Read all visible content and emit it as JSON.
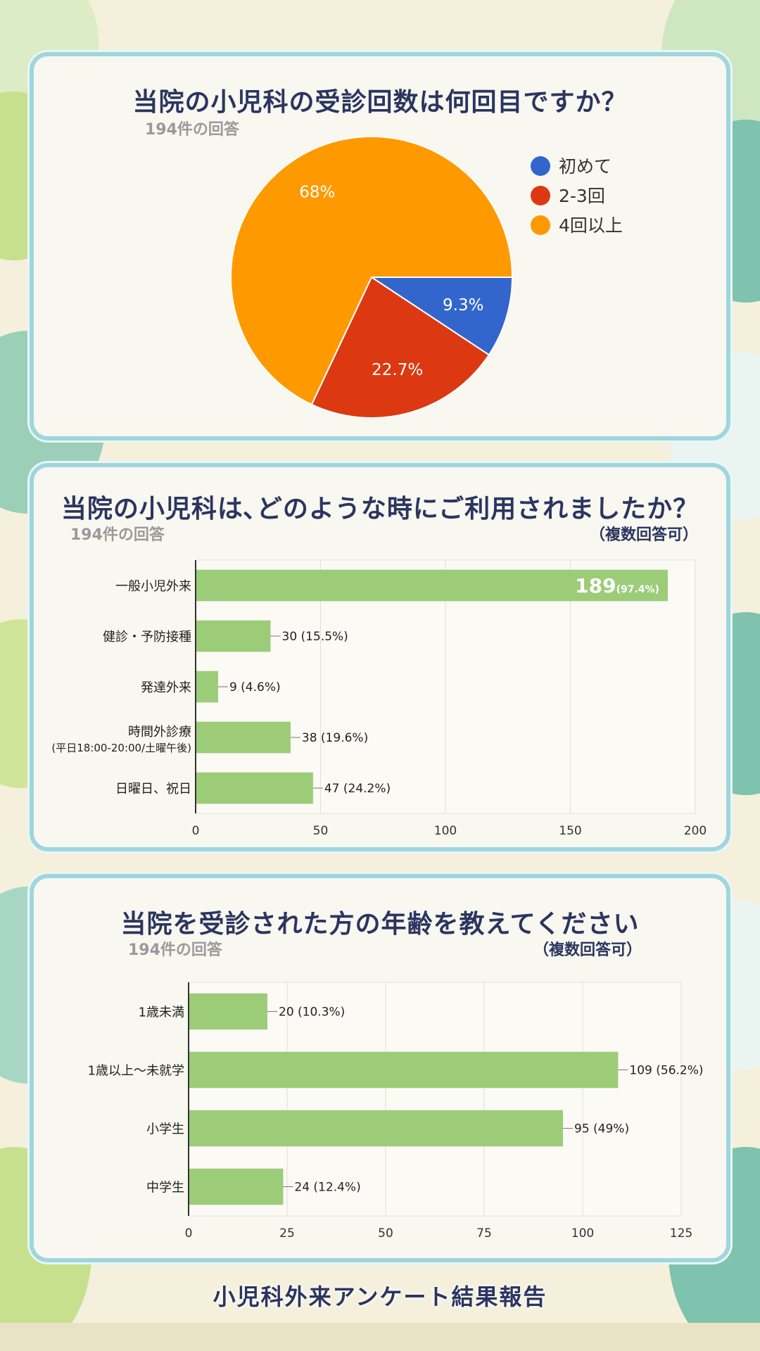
{
  "page": {
    "footer_title": "小児科外来アンケート結果報告",
    "colors": {
      "bar": "#9ccc78",
      "pie_first": "#3366cc",
      "pie_2_3": "#dc3912",
      "pie_4plus": "#ff9900",
      "title": "#2b3560"
    }
  },
  "chart_data": [
    {
      "type": "pie",
      "title": "当院の小児科の受診回数は何回目ですか？",
      "subtitle": "194件の回答",
      "legend_position": "right",
      "slices": [
        {
          "label": "初めて",
          "value": 9.3,
          "value_label": "9.3%",
          "color": "#3366cc"
        },
        {
          "label": "2-3回",
          "value": 22.7,
          "value_label": "22.7%",
          "color": "#dc3912"
        },
        {
          "label": "4回以上",
          "value": 68,
          "value_label": "68%",
          "color": "#ff9900"
        }
      ]
    },
    {
      "type": "bar",
      "orientation": "horizontal",
      "title": "当院の小児科は､どのような時にご利用されましたか？",
      "subtitle": "194件の回答",
      "note": "（複数回答可）",
      "categories": [
        "一般小児外来",
        "健診・予防接種",
        "発達外来",
        "時間外診療",
        "日曜日、祝日"
      ],
      "category_sublabels": [
        "",
        "",
        "",
        "(平日18:00-20:00/土曜午後)",
        ""
      ],
      "values": [
        189,
        30,
        9,
        38,
        47
      ],
      "percent_labels": [
        "97.4%",
        "15.5%",
        "4.6%",
        "19.6%",
        "24.2%"
      ],
      "xlim": [
        0,
        200
      ],
      "xticks": [
        0,
        50,
        100,
        150,
        200
      ],
      "grid": true
    },
    {
      "type": "bar",
      "orientation": "horizontal",
      "title": "当院を受診された方の年齢を教えてください",
      "subtitle": "194件の回答",
      "note": "（複数回答可）",
      "categories": [
        "1歳未満",
        "1歳以上～未就学",
        "小学生",
        "中学生"
      ],
      "values": [
        20,
        109,
        95,
        24
      ],
      "percent_labels": [
        "10.3%",
        "56.2%",
        "49%",
        "12.4%"
      ],
      "xlim": [
        0,
        125
      ],
      "xticks": [
        0,
        25,
        50,
        75,
        100,
        125
      ],
      "grid": true
    }
  ]
}
